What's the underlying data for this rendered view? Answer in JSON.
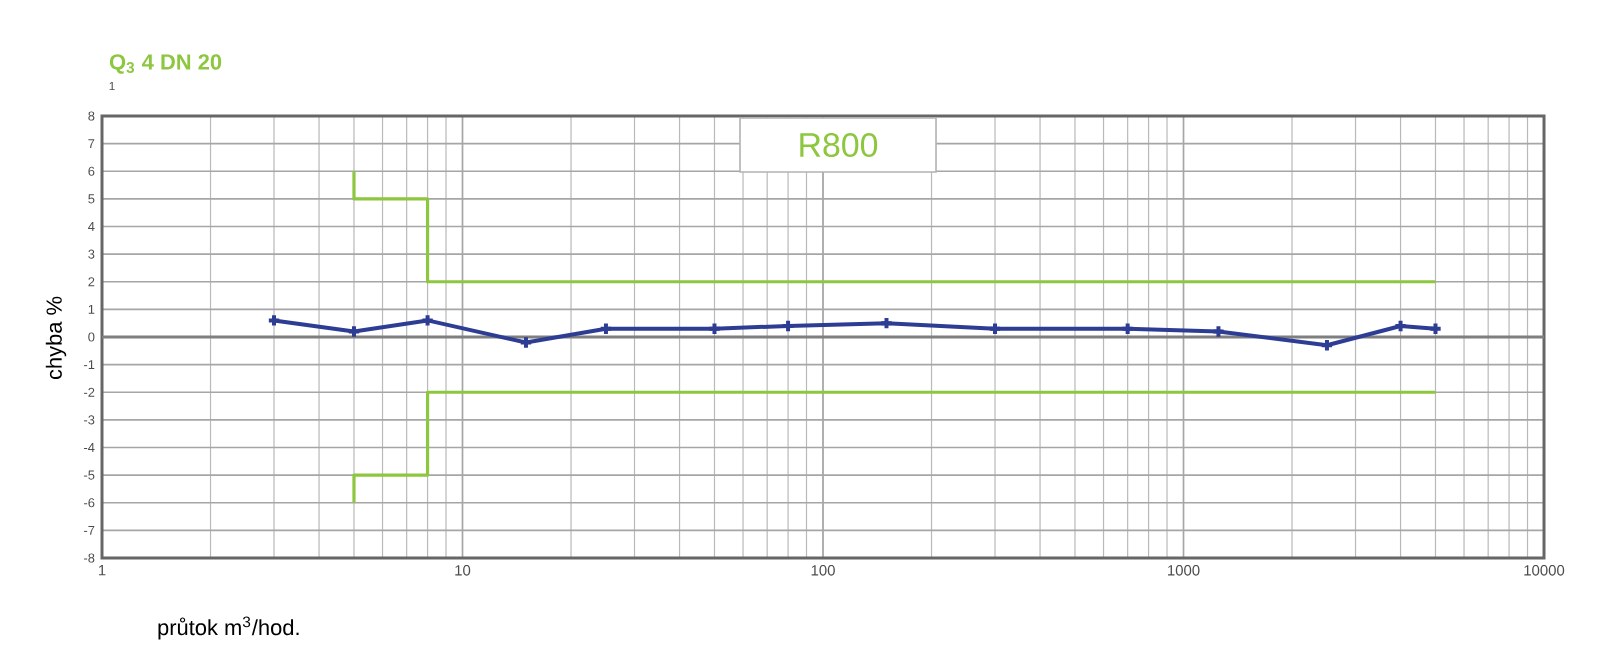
{
  "chart_data": {
    "type": "line",
    "title": "Q$_{3}$ 4 DN 20",
    "xlabel": "průtok m$^{3}$/hod.",
    "ylabel": "chyba %",
    "annotations": [
      "1",
      "R800"
    ],
    "log": "x",
    "xlim": [
      1,
      10000
    ],
    "xticks": [
      1,
      10,
      100,
      1000,
      10000
    ],
    "ylim": [
      -8,
      8
    ],
    "yticks": [
      -8,
      -7,
      -6,
      -5,
      -4,
      -3,
      -2,
      -1,
      0,
      1,
      2,
      3,
      4,
      5,
      6,
      7,
      8
    ],
    "grid": true,
    "ref_lines": [
      {
        "axis": "y",
        "value": 0,
        "color": "#7f7f7f"
      }
    ],
    "series": [
      {
        "color": "#2e3d94",
        "marker": "cross",
        "x": [
          3,
          5,
          8,
          15,
          25,
          50,
          80,
          150,
          300,
          700,
          1250,
          2500,
          4000,
          5000
        ],
        "values": [
          0.6,
          0.2,
          0.6,
          -0.2,
          0.3,
          0.3,
          0.4,
          0.5,
          0.3,
          0.3,
          0.2,
          -0.3,
          0.4,
          0.3
        ]
      },
      {
        "color": "#8dc63f",
        "marker": "none",
        "x": [
          5,
          5,
          8,
          8,
          5000
        ],
        "values": [
          6,
          5,
          5,
          2,
          2
        ]
      },
      {
        "color": "#8dc63f",
        "marker": "none",
        "x": [
          5,
          5,
          8,
          8,
          5000
        ],
        "values": [
          -6,
          -5,
          -5,
          -2,
          -2
        ]
      }
    ]
  }
}
